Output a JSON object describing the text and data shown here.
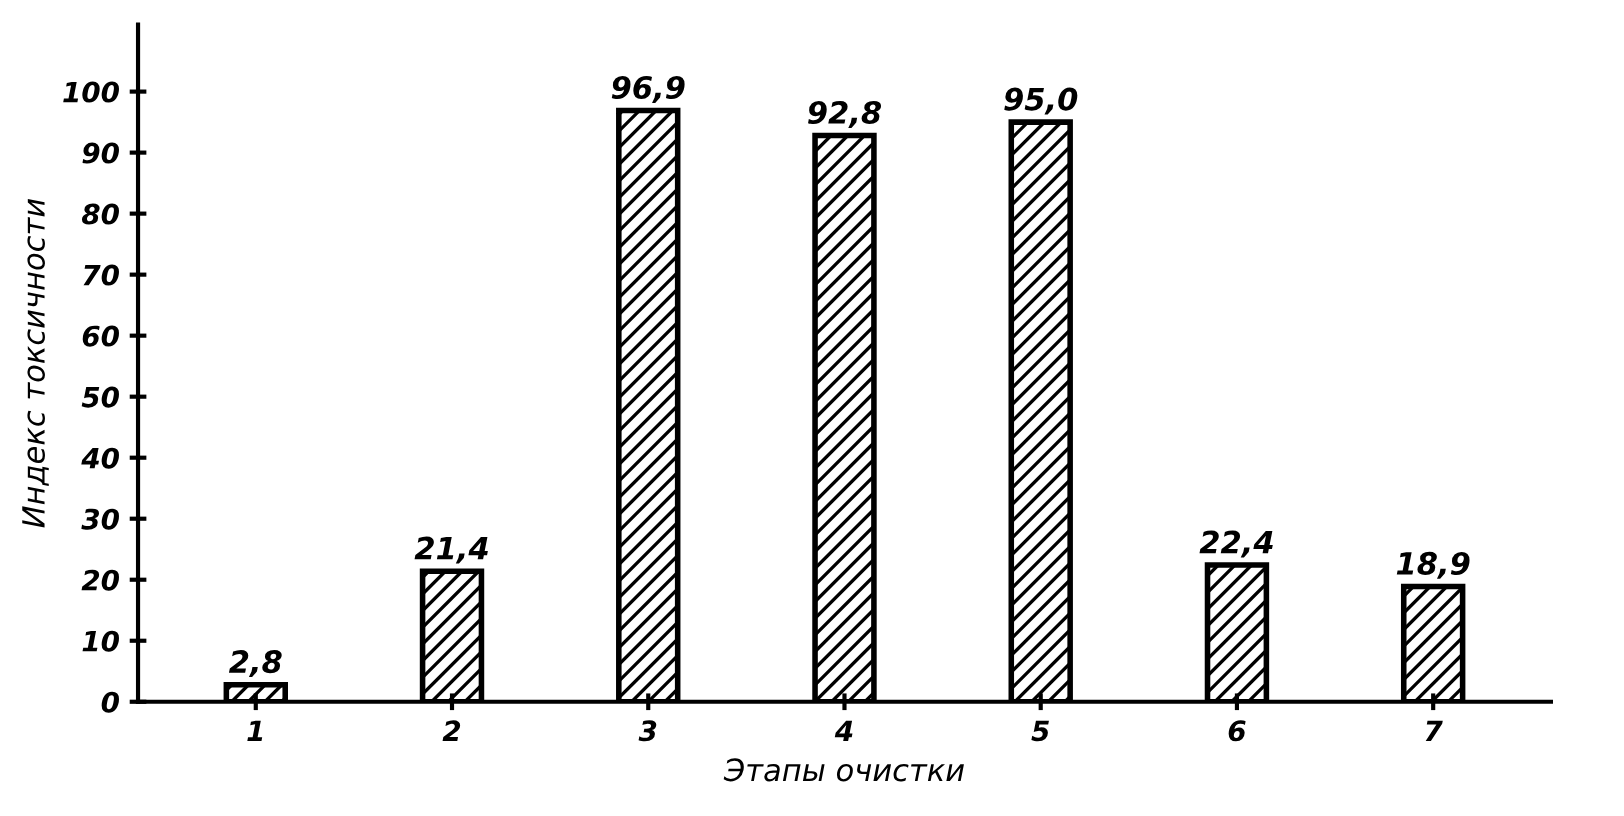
{
  "chart_data": {
    "type": "bar",
    "xlabel": "Этапы очистки",
    "ylabel": "Индекс токсичности",
    "categories": [
      "1",
      "2",
      "3",
      "4",
      "5",
      "6",
      "7"
    ],
    "values": [
      2.8,
      21.4,
      96.9,
      92.8,
      95.0,
      22.4,
      18.9
    ],
    "value_labels": [
      "2,8",
      "21,4",
      "96,9",
      "92,8",
      "95,0",
      "22,4",
      "18,9"
    ],
    "color": "#000000",
    "ylim": [
      0,
      111
    ],
    "yticks": [
      0,
      10,
      20,
      30,
      40,
      50,
      60,
      70,
      80,
      90,
      100
    ],
    "grid": false,
    "legend": false
  }
}
